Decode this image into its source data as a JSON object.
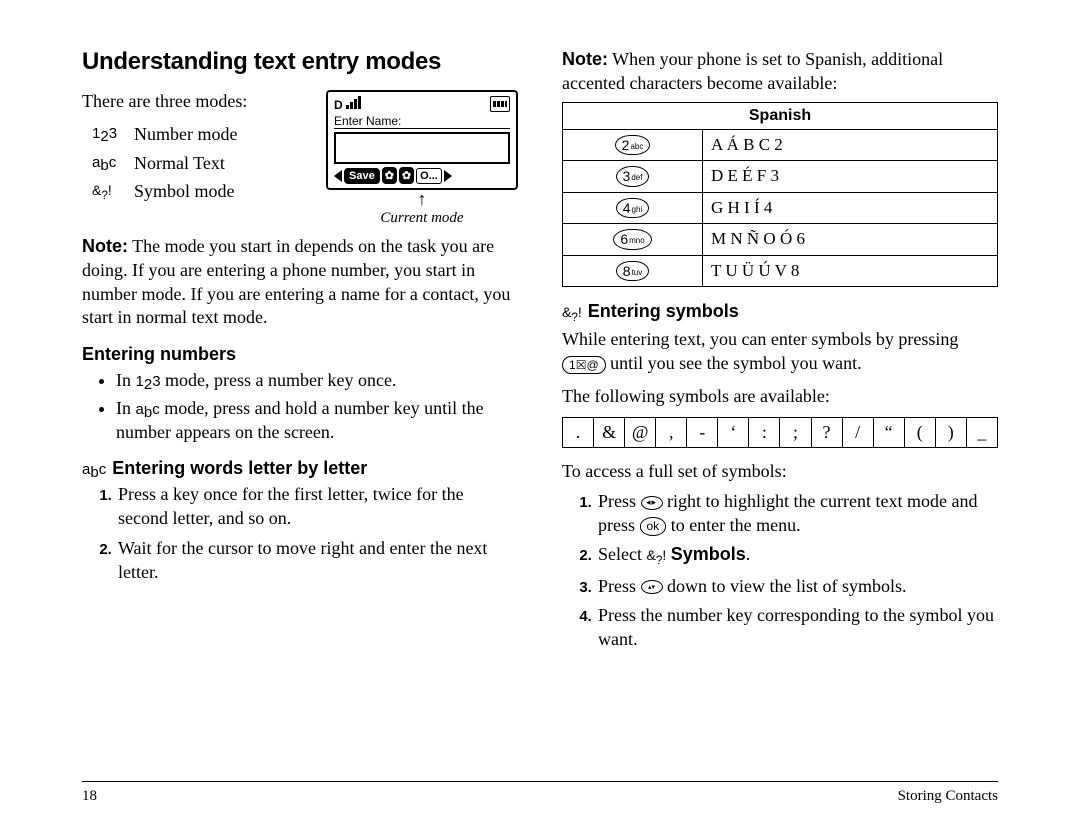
{
  "page_number": "18",
  "footer_section": "Storing Contacts",
  "left": {
    "title": "Understanding text entry modes",
    "intro": "There are three modes:",
    "modes": [
      {
        "glyph_html": "<span class='numsub'><span class='d'>1</span><span class='d lo'>2</span><span class='d'>3</span></span>",
        "label": "Number mode"
      },
      {
        "glyph_html": "<span class='numsub'><span class='d'>a</span><span class='d lo'>b</span><span class='d'>c</span></span>",
        "label": "Normal Text"
      },
      {
        "glyph_html": "<span class='inline-icon'>&amp;<sub>?</sub>!</span>",
        "label": "Symbol mode"
      }
    ],
    "phone": {
      "enter_name": "Enter Name:",
      "save": "Save",
      "opt": "O...",
      "caption": "Current mode"
    },
    "note_html": "<b>Note:</b> The mode you start in depends on the task you are doing. If you are entering a phone number, you start in number mode. If you are entering a name for a contact, you start in normal text mode.",
    "h_numbers": "Entering numbers",
    "bullets": [
      "In <span class='numsub'><span class='d'>1</span><span class='d lo'>2</span><span class='d'>3</span></span>  mode, press a number key once.",
      "In <span class='numsub'><span class='d'>a</span><span class='d lo'>b</span><span class='d'>c</span></span>  mode, press and hold a number key until the number appears on the screen."
    ],
    "h_words_prefix_html": "<span class='numsub'><span class='d'>a</span><span class='d lo'>b</span><span class='d'>c</span></span>",
    "h_words": "Entering words letter by letter",
    "steps_words": [
      "Press a key once for the first letter, twice for the second letter, and so on.",
      "Wait for the cursor to move right and enter the next letter."
    ]
  },
  "right": {
    "note_html": "<b>Note:</b> When your phone is set to Spanish, additional accented characters become available:",
    "table_header": "Spanish",
    "rows": [
      {
        "key_num": "2",
        "key_sub": "abc",
        "chars": "A Á B C 2"
      },
      {
        "key_num": "3",
        "key_sub": "def",
        "chars": "D E É F 3"
      },
      {
        "key_num": "4",
        "key_sub": "ghi",
        "chars": "G H I Í 4"
      },
      {
        "key_num": "6",
        "key_sub": "mno",
        "chars": "M N Ñ O Ó 6"
      },
      {
        "key_num": "8",
        "key_sub": "tuv",
        "chars": "T U Ü Ú V 8"
      }
    ],
    "h_symbols_prefix_html": "<span class='inline-icon'>&amp;<sub>?</sub>!</span>",
    "h_symbols": "Entering symbols",
    "sym_intro_html": "While entering text, you can enter symbols by pressing <span class='widekey'>1<span class='tiny'>☒@</span></span>  until you see the symbol you want.",
    "sym_avail": "The following symbols are available:",
    "symbols": [
      ".",
      "&",
      "@",
      ",",
      "-",
      "‘",
      ":",
      ";",
      "?",
      "/",
      "“",
      "(",
      ")",
      "_"
    ],
    "access": "To access a full set of symbols:",
    "steps_sym": [
      "Press <span class='navdia lr'></span>  right to highlight the current text mode and press  <span class='oval'>ok</span>  to enter the menu.",
      "Select <span class='inline-icon'>&amp;<sub>?</sub>!</span> <b>Symbols</b>.",
      "Press <span class='navdia ud'></span>  down to view the list of symbols.",
      "Press the number key corresponding to the symbol you want."
    ]
  }
}
